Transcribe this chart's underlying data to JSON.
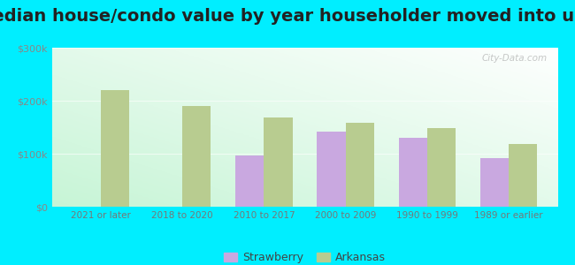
{
  "title": "Median house/condo value by year householder moved into unit",
  "categories": [
    "2021 or later",
    "2018 to 2020",
    "2010 to 2017",
    "2000 to 2009",
    "1990 to 1999",
    "1989 or earlier"
  ],
  "strawberry_values": [
    null,
    null,
    97000,
    142000,
    130000,
    92000
  ],
  "arkansas_values": [
    220000,
    190000,
    168000,
    158000,
    148000,
    118000
  ],
  "strawberry_color": "#c9a8e0",
  "arkansas_color": "#b8cc90",
  "background_outer": "#00eeff",
  "ylim": [
    0,
    300000
  ],
  "yticks": [
    0,
    100000,
    200000,
    300000
  ],
  "ytick_labels": [
    "$0",
    "$100k",
    "$200k",
    "$300k"
  ],
  "bar_width": 0.35,
  "legend_strawberry": "Strawberry",
  "legend_arkansas": "Arkansas",
  "title_fontsize": 14,
  "watermark": "City-Data.com"
}
